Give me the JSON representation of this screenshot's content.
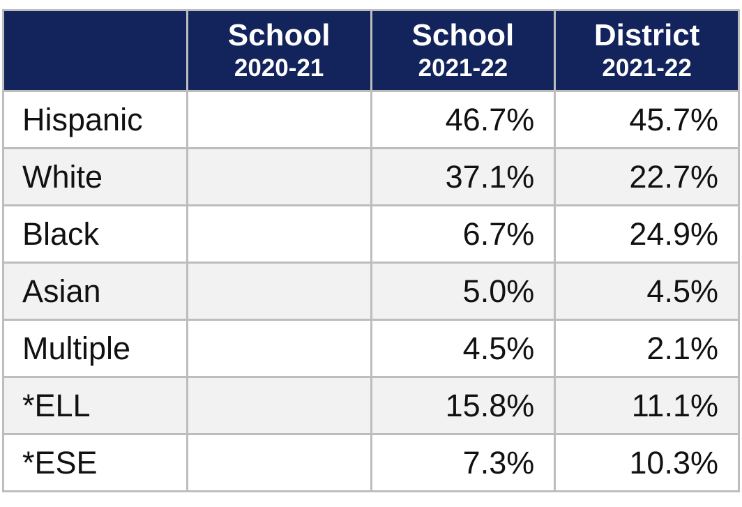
{
  "table": {
    "header": [
      null,
      {
        "line1": "School",
        "line2": "2020-21"
      },
      {
        "line1": "School",
        "line2": "2021-22"
      },
      {
        "line1": "District",
        "line2": "2021-22"
      }
    ],
    "rows": [
      [
        "Hispanic",
        null,
        "46.7%",
        "45.7%"
      ],
      [
        "White",
        null,
        "37.1%",
        "22.7%"
      ],
      [
        "Black",
        null,
        "6.7%",
        "24.9%"
      ],
      [
        "Asian",
        null,
        "5.0%",
        "4.5%"
      ],
      [
        "Multiple",
        null,
        "4.5%",
        "2.1%"
      ],
      [
        "*ELL",
        null,
        "15.8%",
        "11.1%"
      ],
      [
        "*ESE",
        null,
        "7.3%",
        "10.3%"
      ]
    ]
  }
}
